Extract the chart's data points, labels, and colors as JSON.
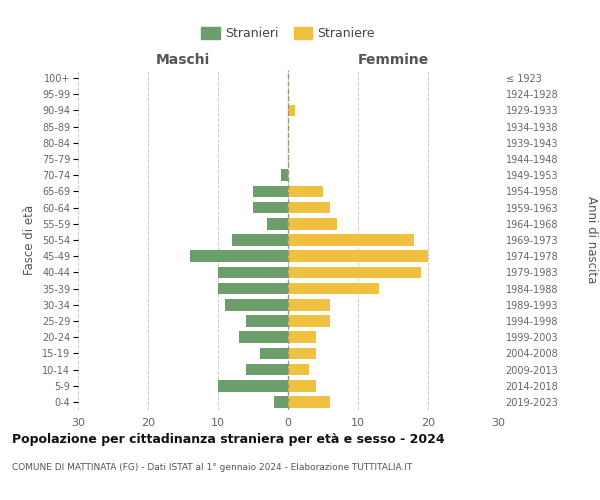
{
  "age_groups": [
    "0-4",
    "5-9",
    "10-14",
    "15-19",
    "20-24",
    "25-29",
    "30-34",
    "35-39",
    "40-44",
    "45-49",
    "50-54",
    "55-59",
    "60-64",
    "65-69",
    "70-74",
    "75-79",
    "80-84",
    "85-89",
    "90-94",
    "95-99",
    "100+"
  ],
  "birth_years": [
    "2019-2023",
    "2014-2018",
    "2009-2013",
    "2004-2008",
    "1999-2003",
    "1994-1998",
    "1989-1993",
    "1984-1988",
    "1979-1983",
    "1974-1978",
    "1969-1973",
    "1964-1968",
    "1959-1963",
    "1954-1958",
    "1949-1953",
    "1944-1948",
    "1939-1943",
    "1934-1938",
    "1929-1933",
    "1924-1928",
    "≤ 1923"
  ],
  "males": [
    2,
    10,
    6,
    4,
    7,
    6,
    9,
    10,
    10,
    14,
    8,
    3,
    5,
    5,
    1,
    0,
    0,
    0,
    0,
    0,
    0
  ],
  "females": [
    6,
    4,
    3,
    4,
    4,
    6,
    6,
    13,
    19,
    20,
    18,
    7,
    6,
    5,
    0,
    0,
    0,
    0,
    1,
    0,
    0
  ],
  "color_male": "#6b9e6b",
  "color_female": "#f0c040",
  "xlim": 30,
  "title": "Popolazione per cittadinanza straniera per età e sesso - 2024",
  "subtitle": "COMUNE DI MATTINATA (FG) - Dati ISTAT al 1° gennaio 2024 - Elaborazione TUTTITALIA.IT",
  "ylabel_left": "Fasce di età",
  "ylabel_right": "Anni di nascita",
  "label_maschi": "Maschi",
  "label_femmine": "Femmine",
  "legend_stranieri": "Stranieri",
  "legend_straniere": "Straniere",
  "bg_color": "#ffffff",
  "grid_color": "#cccccc"
}
